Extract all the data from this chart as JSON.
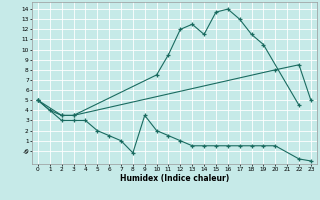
{
  "xlabel": "Humidex (Indice chaleur)",
  "background_color": "#c6eae8",
  "grid_color": "#ffffff",
  "line_color": "#1a6b60",
  "xlim": [
    -0.5,
    23.5
  ],
  "ylim": [
    -1.3,
    14.7
  ],
  "xticks": [
    0,
    1,
    2,
    3,
    4,
    5,
    6,
    7,
    8,
    9,
    10,
    11,
    12,
    13,
    14,
    15,
    16,
    17,
    18,
    19,
    20,
    21,
    22,
    23
  ],
  "yticks": [
    0,
    1,
    2,
    3,
    4,
    5,
    6,
    7,
    8,
    9,
    10,
    11,
    12,
    13,
    14
  ],
  "line1_x": [
    0,
    1,
    2,
    3,
    10,
    11,
    12,
    13,
    14,
    15,
    16,
    17,
    18,
    19,
    22
  ],
  "line1_y": [
    5,
    4,
    3.5,
    3.5,
    7.5,
    9.5,
    12,
    12.5,
    11.5,
    13.7,
    14.0,
    13.0,
    11.5,
    10.5,
    4.5
  ],
  "line2_x": [
    0,
    2,
    3,
    20,
    22,
    23
  ],
  "line2_y": [
    5,
    3.5,
    3.5,
    8.0,
    8.5,
    5.0
  ],
  "line3_x": [
    0,
    2,
    3,
    4,
    5,
    6,
    7,
    8,
    9,
    10,
    11,
    12,
    13,
    14,
    15,
    16,
    17,
    18,
    19,
    20,
    22,
    23
  ],
  "line3_y": [
    5,
    3.0,
    3.0,
    3.0,
    2.0,
    1.5,
    1.0,
    -0.2,
    3.5,
    2.0,
    1.5,
    1.0,
    0.5,
    0.5,
    0.5,
    0.5,
    0.5,
    0.5,
    0.5,
    0.5,
    -0.8,
    -1.0
  ]
}
